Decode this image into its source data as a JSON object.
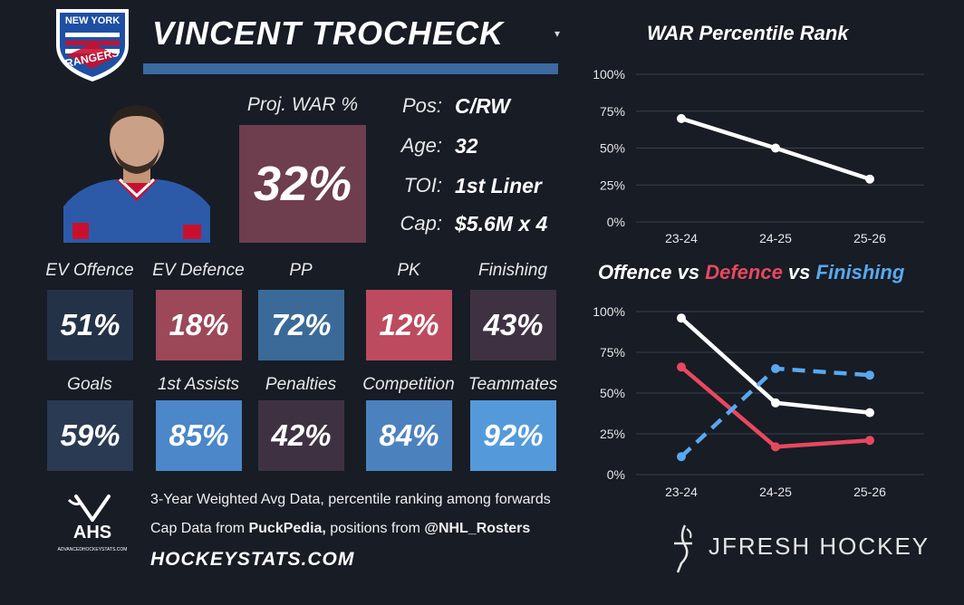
{
  "player": {
    "name": "VINCENT TROCHECK",
    "team_logo_top": "NEW YORK",
    "team_logo_word": "RANGERS",
    "proj_war_label": "Proj. WAR %",
    "proj_war_value": "32%"
  },
  "info": [
    {
      "label": "Pos:",
      "value": "C/RW"
    },
    {
      "label": "Age:",
      "value": "32"
    },
    {
      "label": "TOI:",
      "value": "1st Liner"
    },
    {
      "label": "Cap:",
      "value": "$5.6M x 4"
    }
  ],
  "stats": [
    {
      "label": "EV Offence",
      "value": "51%",
      "color": "#243247"
    },
    {
      "label": "EV Defence",
      "value": "18%",
      "color": "#9c4859"
    },
    {
      "label": "PP",
      "value": "72%",
      "color": "#3b6a98"
    },
    {
      "label": "PK",
      "value": "12%",
      "color": "#bd4b5f"
    },
    {
      "label": "Finishing",
      "value": "43%",
      "color": "#3e3242"
    },
    {
      "label": "Goals",
      "value": "59%",
      "color": "#2a3a52"
    },
    {
      "label": "1st Assists",
      "value": "85%",
      "color": "#4b87c9"
    },
    {
      "label": "Penalties",
      "value": "42%",
      "color": "#3e3242"
    },
    {
      "label": "Competition",
      "value": "84%",
      "color": "#4b82be"
    },
    {
      "label": "Teammates",
      "value": "92%",
      "color": "#549adb"
    }
  ],
  "footer": {
    "line1": "3-Year Weighted Avg Data, percentile ranking among forwards",
    "line2_prefix": "Cap Data from ",
    "line2_pp": "PuckPedia,",
    "line2_mid": " positions from ",
    "line2_handle": "@NHL_Rosters",
    "site": "HOCKEYSTATS.COM",
    "ahs_logo": "AHS",
    "ahs_sub": "ADVANCEDHOCKEYSTATS.COM",
    "brand": "JFRESH HOCKEY"
  },
  "chart_data": [
    {
      "type": "line",
      "title": "WAR Percentile Rank",
      "categories": [
        "23-24",
        "24-25",
        "25-26"
      ],
      "ylim": [
        0,
        100
      ],
      "yticks": [
        "0%",
        "25%",
        "50%",
        "75%",
        "100%"
      ],
      "grid": true,
      "series": [
        {
          "values": [
            70,
            50,
            29
          ],
          "color": "#ffffff",
          "dashed": false
        }
      ]
    },
    {
      "type": "line",
      "title_parts": [
        {
          "text": "Offence",
          "color": "#ffffff"
        },
        {
          "text": " vs ",
          "color": "#ffffff"
        },
        {
          "text": "Defence",
          "color": "#e8485f"
        },
        {
          "text": " vs ",
          "color": "#ffffff"
        },
        {
          "text": "Finishing",
          "color": "#59a8ee"
        }
      ],
      "categories": [
        "23-24",
        "24-25",
        "25-26"
      ],
      "ylim": [
        0,
        100
      ],
      "yticks": [
        "0%",
        "25%",
        "50%",
        "75%",
        "100%"
      ],
      "grid": true,
      "series": [
        {
          "values": [
            96,
            44,
            38
          ],
          "color": "#ffffff",
          "dashed": false
        },
        {
          "values": [
            66,
            17,
            21
          ],
          "color": "#e8485f",
          "dashed": false
        },
        {
          "values": [
            11,
            65,
            61
          ],
          "color": "#59a8ee",
          "dashed": true
        }
      ]
    }
  ]
}
